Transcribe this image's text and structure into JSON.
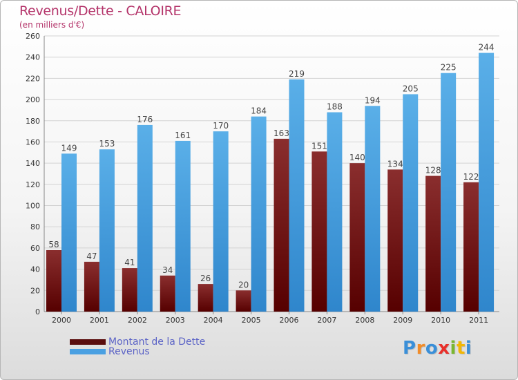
{
  "chart_data": {
    "type": "bar",
    "title": "Revenus/Dette - CALOIRE",
    "subtitle": "(en milliers d'€)",
    "categories": [
      "2000",
      "2001",
      "2002",
      "2003",
      "2004",
      "2005",
      "2006",
      "2007",
      "2008",
      "2009",
      "2010",
      "2011"
    ],
    "series": [
      {
        "name": "Montant de la Dette",
        "color": "#7a1c1c",
        "values": [
          58,
          47,
          41,
          34,
          26,
          20,
          163,
          151,
          140,
          134,
          128,
          122
        ]
      },
      {
        "name": "Revenus",
        "color": "#4aa0e2",
        "values": [
          149,
          153,
          176,
          161,
          170,
          184,
          219,
          188,
          194,
          205,
          225,
          244
        ]
      }
    ],
    "ylim": [
      0,
      260
    ],
    "yticks": [
      0,
      20,
      40,
      60,
      80,
      100,
      120,
      140,
      160,
      180,
      200,
      220,
      240,
      260
    ],
    "grid": true,
    "legend_position": "bottom-left"
  },
  "logo": {
    "text": "Proxiti",
    "colors": [
      "#3a8fd8",
      "#f28c28",
      "#3a8fd8",
      "#e8302a",
      "#7ab730",
      "#f2b705",
      "#3a8fd8"
    ]
  }
}
